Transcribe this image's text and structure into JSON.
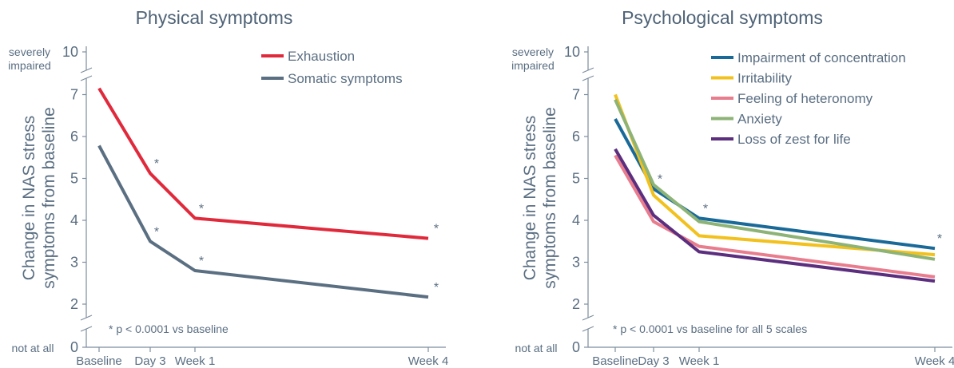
{
  "chart_data": [
    {
      "type": "line",
      "title": "Physical symptoms",
      "ylabel_line1": "Change in NAS stress",
      "ylabel_line2": "symptoms from baseline",
      "top_label_line1": "severely",
      "top_label_line2": "impaired",
      "bottom_label": "not at all",
      "categories": [
        "Baseline",
        "Day 3",
        "Week 1",
        "Week 4"
      ],
      "x": [
        "Baseline",
        "Day 3",
        "Week 1",
        "Week 4"
      ],
      "ylim": [
        0,
        10
      ],
      "yticks": [
        "0",
        "2",
        "3",
        "4",
        "5",
        "6",
        "7",
        "10"
      ],
      "axis_break": [
        7.5,
        9.5
      ],
      "note": "* p < 0.0001 vs baseline",
      "significance_marker": "*",
      "legend_position": "top-right",
      "series": [
        {
          "name": "Exhaustion",
          "color": "#e02a3c",
          "values": [
            7.15,
            5.12,
            4.05,
            3.57
          ],
          "significant": [
            false,
            true,
            true,
            true
          ]
        },
        {
          "name": "Somatic symptoms",
          "color": "#5b6f82",
          "values": [
            5.78,
            3.5,
            2.8,
            2.17
          ],
          "significant": [
            false,
            true,
            true,
            true
          ]
        }
      ]
    },
    {
      "type": "line",
      "title": "Psychological symptoms",
      "ylabel_line1": "Change in NAS stress",
      "ylabel_line2": "symptoms from baseline",
      "top_label_line1": "severely",
      "top_label_line2": "impaired",
      "bottom_label": "not at all",
      "categories": [
        "Baseline",
        "Day 3",
        "Week 1",
        "Week 4"
      ],
      "x": [
        "Baseline",
        "Day 3",
        "Week 1",
        "Week 4"
      ],
      "ylim": [
        0,
        10
      ],
      "yticks": [
        "0",
        "2",
        "3",
        "4",
        "5",
        "6",
        "7",
        "10"
      ],
      "axis_break": [
        7.5,
        9.5
      ],
      "note": "* p < 0.0001 vs baseline for all 5 scales",
      "significance_marker": "*",
      "legend_position": "top-right",
      "series": [
        {
          "name": "Impairment of concentration",
          "color": "#1a6a99",
          "values": [
            6.42,
            4.75,
            4.05,
            3.33
          ],
          "significant": [
            false,
            true,
            true,
            true
          ]
        },
        {
          "name": "Irritability",
          "color": "#f2c11d",
          "values": [
            7.0,
            4.6,
            3.63,
            3.18
          ],
          "significant": [
            false,
            false,
            false,
            false
          ]
        },
        {
          "name": "Feeling of heteronomy",
          "color": "#e87d8e",
          "values": [
            5.55,
            3.97,
            3.38,
            2.65
          ],
          "significant": [
            false,
            false,
            false,
            false
          ]
        },
        {
          "name": "Anxiety",
          "color": "#8db376",
          "values": [
            6.88,
            4.85,
            3.97,
            3.07
          ],
          "significant": [
            false,
            false,
            false,
            false
          ]
        },
        {
          "name": "Loss of zest for life",
          "color": "#5b2e7e",
          "values": [
            5.7,
            4.12,
            3.25,
            2.55
          ],
          "significant": [
            false,
            false,
            false,
            false
          ]
        }
      ]
    }
  ]
}
